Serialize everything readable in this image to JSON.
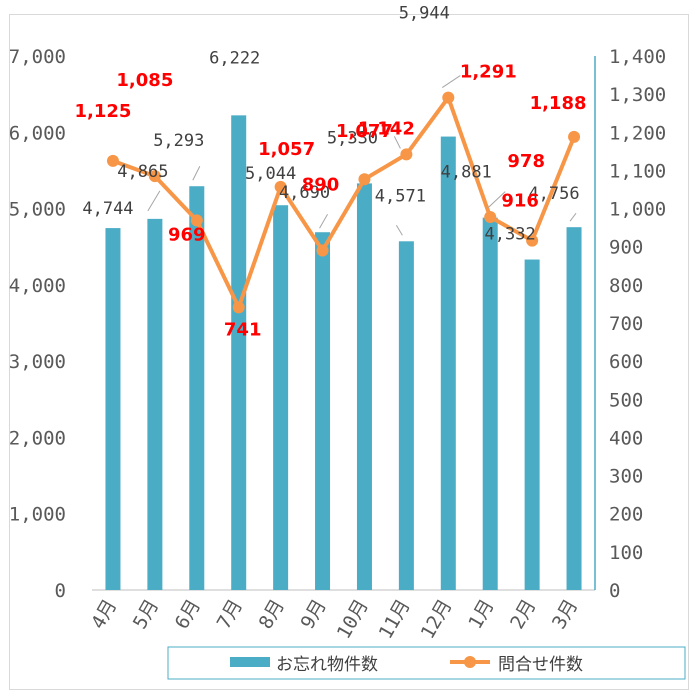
{
  "chart_data": {
    "type": "bar",
    "categories": [
      "4月",
      "5月",
      "6月",
      "7月",
      "8月",
      "9月",
      "10月",
      "11月",
      "12月",
      "1月",
      "2月",
      "3月"
    ],
    "series": [
      {
        "name": "お忘れ物件数",
        "type": "bar",
        "axis": "left",
        "values": [
          4744,
          4865,
          5293,
          6222,
          5044,
          4690,
          5330,
          4571,
          5944,
          4881,
          4332,
          4756
        ],
        "labels": [
          "4,744",
          "4,865",
          "5,293",
          "6,222",
          "5,044",
          "4,690",
          "5,330",
          "4,571",
          "5,944",
          "4,881",
          "4,332",
          "4,756"
        ],
        "color": "#4bacc6"
      },
      {
        "name": "問合せ件数",
        "type": "line",
        "axis": "right",
        "values": [
          1125,
          1085,
          969,
          741,
          1057,
          890,
          1077,
          1142,
          1291,
          978,
          916,
          1188
        ],
        "labels": [
          "1,125",
          "1,085",
          "969",
          "741",
          "1,057",
          "890",
          "1,077",
          "1,142",
          "1,291",
          "978",
          "916",
          "1,188"
        ],
        "color": "#f79646",
        "label_color": "#ff0000"
      }
    ],
    "y_left": {
      "ylim": [
        0,
        7000
      ],
      "ticks": [
        0,
        1000,
        2000,
        3000,
        4000,
        5000,
        6000,
        7000
      ],
      "tick_labels": [
        "0",
        "1,000",
        "2,000",
        "3,000",
        "4,000",
        "5,000",
        "6,000",
        "7,000"
      ]
    },
    "y_right": {
      "ylim": [
        0,
        1400
      ],
      "ticks": [
        0,
        100,
        200,
        300,
        400,
        500,
        600,
        700,
        800,
        900,
        1000,
        1100,
        1200,
        1300,
        1400
      ],
      "tick_labels": [
        "0",
        "100",
        "200",
        "300",
        "400",
        "500",
        "600",
        "700",
        "800",
        "900",
        "1,000",
        "1,100",
        "1,200",
        "1,300",
        "1,400"
      ]
    },
    "legend": {
      "position": "bottom-right",
      "items": [
        "お忘れ物件数",
        "問合せ件数"
      ]
    },
    "grid": false
  }
}
